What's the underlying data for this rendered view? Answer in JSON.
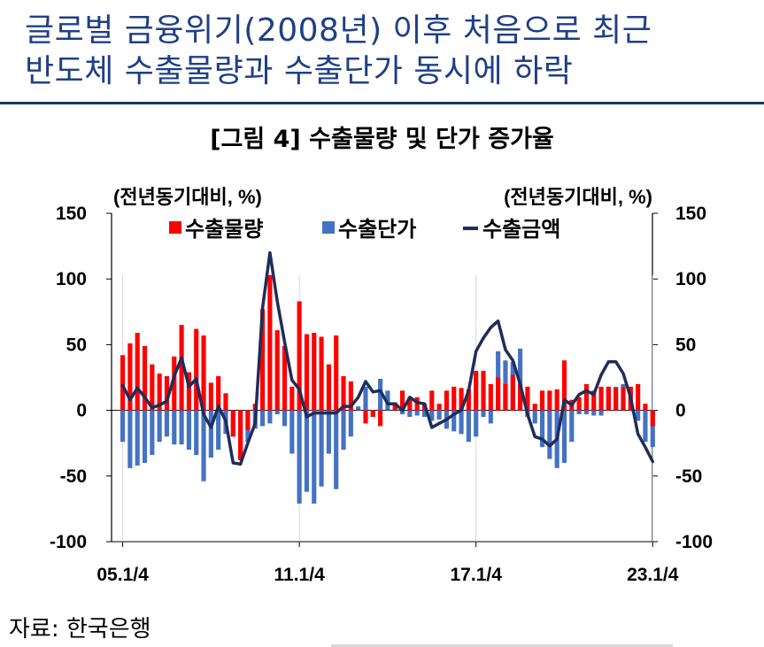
{
  "headline": {
    "line1": "글로벌 금융위기(2008년) 이후 처음으로 최근",
    "line2": "반도체 수출물량과 수출단가 동시에 하락"
  },
  "source": "자료: 한국은행",
  "chart_data": {
    "type": "bar",
    "title": "[그림 4] 수출물량 및 단가 증가율",
    "ylabel_left": "(전년동기대비, %)",
    "ylabel_right": "(전년동기대비, %)",
    "ylim": [
      -100,
      150
    ],
    "y_ticks": [
      150,
      100,
      50,
      0,
      -50,
      -100
    ],
    "x_tick_labels": [
      "05.1/4",
      "11.1/4",
      "17.1/4",
      "23.1/4"
    ],
    "legend_position": "top",
    "grid": false,
    "colors": {
      "volume": "#ff0000",
      "price": "#4472c4",
      "value": "#1f2d5a"
    },
    "categories": [
      "05.1/4",
      "05.2/4",
      "05.3/4",
      "05.4/4",
      "06.1/4",
      "06.2/4",
      "06.3/4",
      "06.4/4",
      "07.1/4",
      "07.2/4",
      "07.3/4",
      "07.4/4",
      "08.1/4",
      "08.2/4",
      "08.3/4",
      "08.4/4",
      "09.1/4",
      "09.2/4",
      "09.3/4",
      "09.4/4",
      "10.1/4",
      "10.2/4",
      "10.3/4",
      "10.4/4",
      "11.1/4",
      "11.2/4",
      "11.3/4",
      "11.4/4",
      "12.1/4",
      "12.2/4",
      "12.3/4",
      "12.4/4",
      "13.1/4",
      "13.2/4",
      "13.3/4",
      "13.4/4",
      "14.1/4",
      "14.2/4",
      "14.3/4",
      "14.4/4",
      "15.1/4",
      "15.2/4",
      "15.3/4",
      "15.4/4",
      "16.1/4",
      "16.2/4",
      "16.3/4",
      "16.4/4",
      "17.1/4",
      "17.2/4",
      "17.3/4",
      "17.4/4",
      "18.1/4",
      "18.2/4",
      "18.3/4",
      "18.4/4",
      "19.1/4",
      "19.2/4",
      "19.3/4",
      "19.4/4",
      "20.1/4",
      "20.2/4",
      "20.3/4",
      "20.4/4",
      "21.1/4",
      "21.2/4",
      "21.3/4",
      "21.4/4",
      "22.1/4",
      "22.2/4",
      "22.3/4",
      "22.4/4",
      "23.1/4"
    ],
    "series": [
      {
        "name": "수출물량",
        "kind": "bar",
        "values": [
          42,
          51,
          59,
          49,
          35,
          28,
          26,
          41,
          65,
          29,
          62,
          57,
          21,
          26,
          13,
          -20,
          -38,
          -15,
          5,
          77,
          103,
          61,
          49,
          18,
          83,
          58,
          59,
          56,
          35,
          57,
          26,
          22,
          0,
          -10,
          -5,
          -12,
          0,
          6,
          15,
          10,
          10,
          5,
          15,
          5,
          15,
          18,
          17,
          16,
          30,
          30,
          20,
          25,
          20,
          27,
          20,
          18,
          5,
          15,
          15,
          16,
          38,
          8,
          10,
          20,
          15,
          18,
          18,
          17,
          18,
          18,
          20,
          5,
          -12
        ]
      },
      {
        "name": "수출단가",
        "kind": "bar",
        "values": [
          -24,
          -44,
          -42,
          -40,
          -34,
          -24,
          -20,
          -26,
          -26,
          -30,
          -34,
          -54,
          -36,
          -30,
          -18,
          -20,
          -38,
          -24,
          -14,
          -12,
          -10,
          -3,
          -12,
          -33,
          -71,
          -62,
          -71,
          -58,
          -33,
          -60,
          -30,
          -20,
          3,
          18,
          -5,
          24,
          15,
          4,
          -3,
          -5,
          -4,
          -5,
          -8,
          -7,
          -14,
          -16,
          -18,
          -24,
          -20,
          -5,
          -10,
          45,
          38,
          37,
          47,
          -5,
          -10,
          -28,
          -37,
          -44,
          -40,
          -24,
          -3,
          -3,
          -4,
          -4,
          18,
          18,
          20,
          15,
          -8,
          -24,
          -28
        ]
      },
      {
        "name": "수출금액",
        "kind": "line",
        "values": [
          19,
          8,
          17,
          10,
          2,
          4,
          7,
          26,
          40,
          18,
          24,
          -3,
          -13,
          3,
          -8,
          -40,
          -41,
          -25,
          -10,
          78,
          120,
          83,
          52,
          23,
          16,
          -5,
          -2,
          -2,
          -2,
          -2,
          3,
          3,
          10,
          22,
          14,
          15,
          5,
          5,
          0,
          10,
          6,
          5,
          -13,
          -10,
          -7,
          -3,
          0,
          15,
          45,
          55,
          63,
          68,
          46,
          38,
          20,
          -3,
          -20,
          -22,
          -27,
          -22,
          8,
          4,
          12,
          15,
          12,
          27,
          37,
          37,
          28,
          10,
          -18,
          -28,
          -39
        ]
      }
    ]
  }
}
